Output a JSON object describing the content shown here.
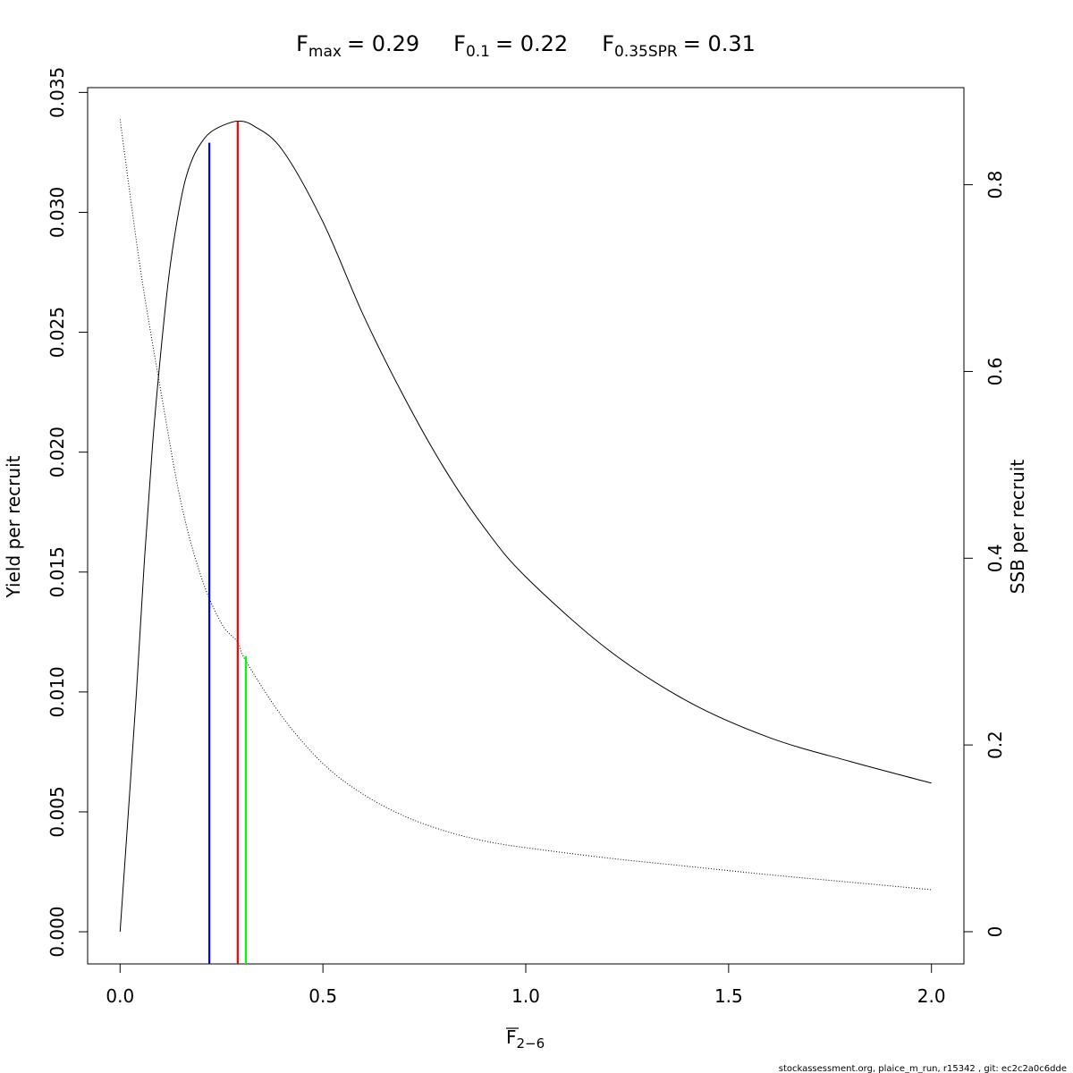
{
  "chart_data": {
    "type": "line",
    "title_parts": {
      "fmax": {
        "base": "F",
        "sub": "max",
        "value": "= 0.29"
      },
      "f01": {
        "base": "F",
        "sub": "0.1",
        "value": "= 0.22"
      },
      "fspr": {
        "base": "F",
        "sub": "0.35SPR",
        "value": "= 0.31"
      }
    },
    "xlabel": {
      "base": "F",
      "sub": "2−6"
    },
    "ylabel_left": "Yield per recruit",
    "ylabel_right": "SSB per recruit",
    "footer": "stockassessment.org, plaice_m_run, r15342 , git: ec2c2a0c6dde",
    "xlim": [
      -0.08,
      2.08
    ],
    "ylim_left": [
      -0.00134,
      0.0352
    ],
    "ylim_right": [
      -0.0345,
      0.904
    ],
    "x_ticks": [
      0.0,
      0.5,
      1.0,
      1.5,
      2.0
    ],
    "x_tick_labels": [
      "0.0",
      "0.5",
      "1.0",
      "1.5",
      "2.0"
    ],
    "y_left_ticks": [
      0.0,
      0.005,
      0.01,
      0.015,
      0.02,
      0.025,
      0.03,
      0.035
    ],
    "y_left_tick_labels": [
      "0.000",
      "0.005",
      "0.010",
      "0.015",
      "0.020",
      "0.025",
      "0.030",
      "0.035"
    ],
    "y_right_ticks": [
      0,
      0.2,
      0.4,
      0.6,
      0.8
    ],
    "y_right_tick_labels": [
      "0",
      "0.2",
      "0.4",
      "0.6",
      "0.8"
    ],
    "series": [
      {
        "name": "Yield per recruit",
        "axis": "left",
        "style": "solid",
        "color": "#000000",
        "x": [
          0.0,
          0.02,
          0.04,
          0.06,
          0.08,
          0.1,
          0.12,
          0.14,
          0.16,
          0.18,
          0.2,
          0.22,
          0.25,
          0.29,
          0.33,
          0.4,
          0.5,
          0.6,
          0.7,
          0.8,
          0.9,
          1.0,
          1.2,
          1.4,
          1.6,
          1.8,
          2.0
        ],
        "y": [
          0.0,
          0.0049,
          0.0099,
          0.0155,
          0.0203,
          0.0241,
          0.0273,
          0.0296,
          0.0313,
          0.0323,
          0.0329,
          0.0333,
          0.0336,
          0.0338,
          0.0336,
          0.0326,
          0.0296,
          0.0257,
          0.0223,
          0.0193,
          0.0168,
          0.0148,
          0.0118,
          0.0096,
          0.0081,
          0.0071,
          0.0062
        ]
      },
      {
        "name": "SSB per recruit",
        "axis": "right",
        "style": "dotted",
        "color": "#000000",
        "x": [
          0.0,
          0.05,
          0.1,
          0.15,
          0.2,
          0.25,
          0.29,
          0.31,
          0.4,
          0.5,
          0.6,
          0.7,
          0.8,
          0.9,
          1.0,
          1.2,
          1.4,
          1.6,
          1.8,
          2.0
        ],
        "y": [
          0.87,
          0.71,
          0.58,
          0.46,
          0.38,
          0.33,
          0.31,
          0.29,
          0.23,
          0.18,
          0.147,
          0.124,
          0.108,
          0.097,
          0.09,
          0.079,
          0.07,
          0.061,
          0.053,
          0.045
        ]
      }
    ],
    "reference_lines": [
      {
        "name": "F0.1",
        "x": 0.22,
        "y_top": 0.0329,
        "color": "#0000ff"
      },
      {
        "name": "Fmax",
        "x": 0.29,
        "y_top": 0.0338,
        "color": "#ff0000"
      },
      {
        "name": "F0.35SPR",
        "x": 0.31,
        "y_top": 0.0115,
        "color": "#00ff00"
      }
    ]
  }
}
